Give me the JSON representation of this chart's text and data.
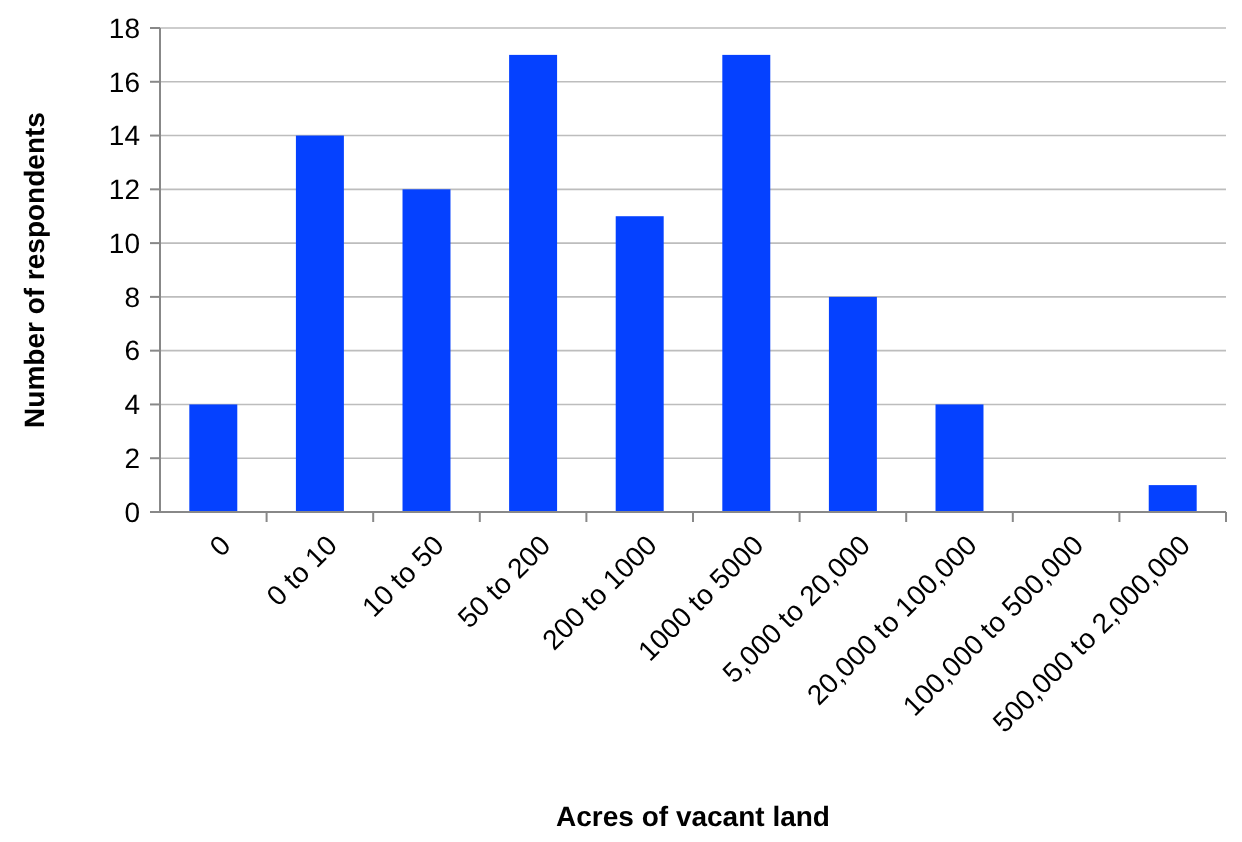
{
  "chart_data": {
    "type": "bar",
    "xlabel": "Acres of vacant land",
    "ylabel": "Number of respondents",
    "categories": [
      "0",
      "0 to 10",
      "10 to 50",
      "50 to 200",
      "200 to 1000",
      "1000 to 5000",
      "5,000 to 20,000",
      "20,000 to 100,000",
      "100,000 to 500,000",
      "500,000 to 2,000,000"
    ],
    "values": [
      4,
      14,
      12,
      17,
      11,
      17,
      8,
      4,
      0,
      1
    ],
    "color": "#0541ff",
    "ylim": [
      0,
      18
    ],
    "yticks": [
      0,
      2,
      4,
      6,
      8,
      10,
      12,
      14,
      16,
      18
    ],
    "grid": "y"
  }
}
